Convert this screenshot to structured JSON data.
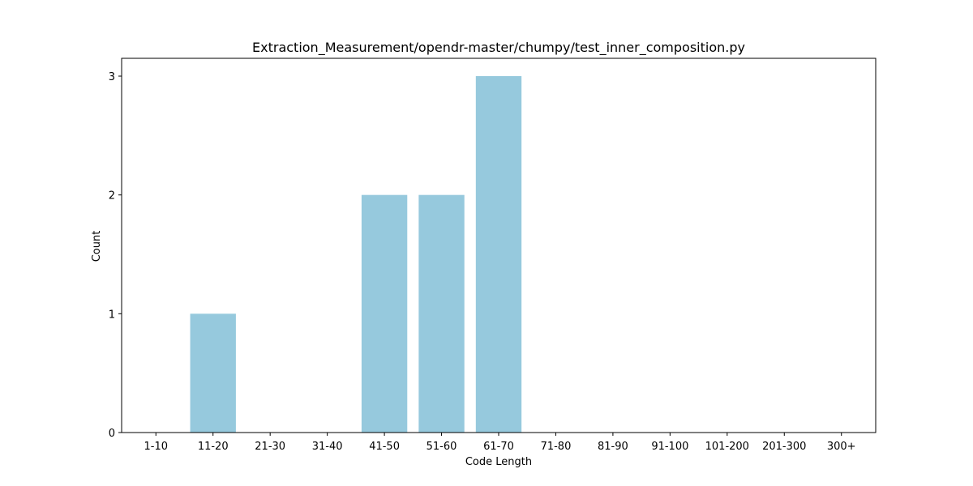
{
  "chart_data": {
    "type": "bar",
    "title": "Extraction_Measurement/opendr-master/chumpy/test_inner_composition.py",
    "xlabel": "Code Length",
    "ylabel": "Count",
    "categories": [
      "1-10",
      "11-20",
      "21-30",
      "31-40",
      "41-50",
      "51-60",
      "61-70",
      "71-80",
      "81-90",
      "91-100",
      "101-200",
      "201-300",
      "300+"
    ],
    "values": [
      0,
      1,
      0,
      0,
      2,
      2,
      3,
      0,
      0,
      0,
      0,
      0,
      0
    ],
    "ylim": [
      0,
      3.15
    ],
    "yticks": [
      "0",
      "1",
      "2",
      "3"
    ],
    "bar_color": "#96c9dd",
    "grid": false,
    "legend": "none"
  }
}
